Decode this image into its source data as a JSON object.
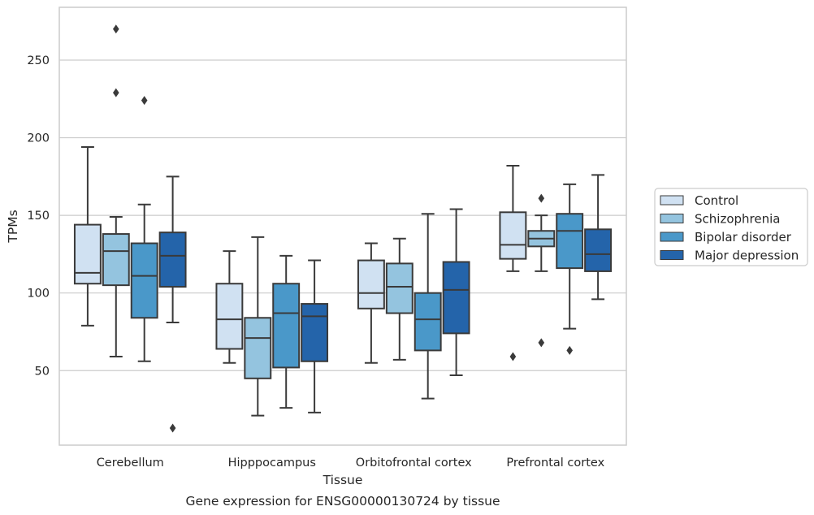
{
  "chart_data": {
    "type": "box",
    "title": "",
    "caption": "Gene expression for ENSG00000130724 by tissue",
    "xlabel": "Tissue",
    "ylabel": "TPMs",
    "ylim": [
      2,
      284
    ],
    "yticks": [
      50,
      100,
      150,
      200,
      250
    ],
    "grid": "horizontal",
    "legend_position": "right",
    "categories": [
      "Cerebellum",
      "Hipppocampus",
      "Orbitofrontal cortex",
      "Prefrontal cortex"
    ],
    "series": [
      {
        "name": "Control",
        "color": "#d0e1f2",
        "boxes": [
          {
            "whislo": 79,
            "q1": 106,
            "med": 113,
            "q3": 144,
            "whishi": 194,
            "fliers": []
          },
          {
            "whislo": 55,
            "q1": 64,
            "med": 83,
            "q3": 106,
            "whishi": 127,
            "fliers": []
          },
          {
            "whislo": 55,
            "q1": 90,
            "med": 100,
            "q3": 121,
            "whishi": 132,
            "fliers": []
          },
          {
            "whislo": 114,
            "q1": 122,
            "med": 131,
            "q3": 152,
            "whishi": 182,
            "fliers": [
              59
            ]
          }
        ]
      },
      {
        "name": "Schizophrenia",
        "color": "#94c4df",
        "boxes": [
          {
            "whislo": 59,
            "q1": 105,
            "med": 127,
            "q3": 138,
            "whishi": 149,
            "fliers": [
              270,
              229
            ]
          },
          {
            "whislo": 21,
            "q1": 45,
            "med": 71,
            "q3": 84,
            "whishi": 136,
            "fliers": []
          },
          {
            "whislo": 57,
            "q1": 87,
            "med": 104,
            "q3": 119,
            "whishi": 135,
            "fliers": []
          },
          {
            "whislo": 114,
            "q1": 130,
            "med": 135,
            "q3": 140,
            "whishi": 150,
            "fliers": [
              161,
              68
            ]
          }
        ]
      },
      {
        "name": "Bipolar disorder",
        "color": "#4a98c9",
        "boxes": [
          {
            "whislo": 56,
            "q1": 84,
            "med": 111,
            "q3": 132,
            "whishi": 157,
            "fliers": [
              224
            ]
          },
          {
            "whislo": 26,
            "q1": 52,
            "med": 87,
            "q3": 106,
            "whishi": 124,
            "fliers": []
          },
          {
            "whislo": 32,
            "q1": 63,
            "med": 83,
            "q3": 100,
            "whishi": 151,
            "fliers": []
          },
          {
            "whislo": 77,
            "q1": 116,
            "med": 140,
            "q3": 151,
            "whishi": 170,
            "fliers": [
              63
            ]
          }
        ]
      },
      {
        "name": "Major depression",
        "color": "#2464aa",
        "boxes": [
          {
            "whislo": 81,
            "q1": 104,
            "med": 124,
            "q3": 139,
            "whishi": 175,
            "fliers": [
              13
            ]
          },
          {
            "whislo": 23,
            "q1": 56,
            "med": 85,
            "q3": 93,
            "whishi": 121,
            "fliers": []
          },
          {
            "whislo": 47,
            "q1": 74,
            "med": 102,
            "q3": 120,
            "whishi": 154,
            "fliers": []
          },
          {
            "whislo": 96,
            "q1": 114,
            "med": 125,
            "q3": 141,
            "whishi": 176,
            "fliers": []
          }
        ]
      }
    ]
  }
}
